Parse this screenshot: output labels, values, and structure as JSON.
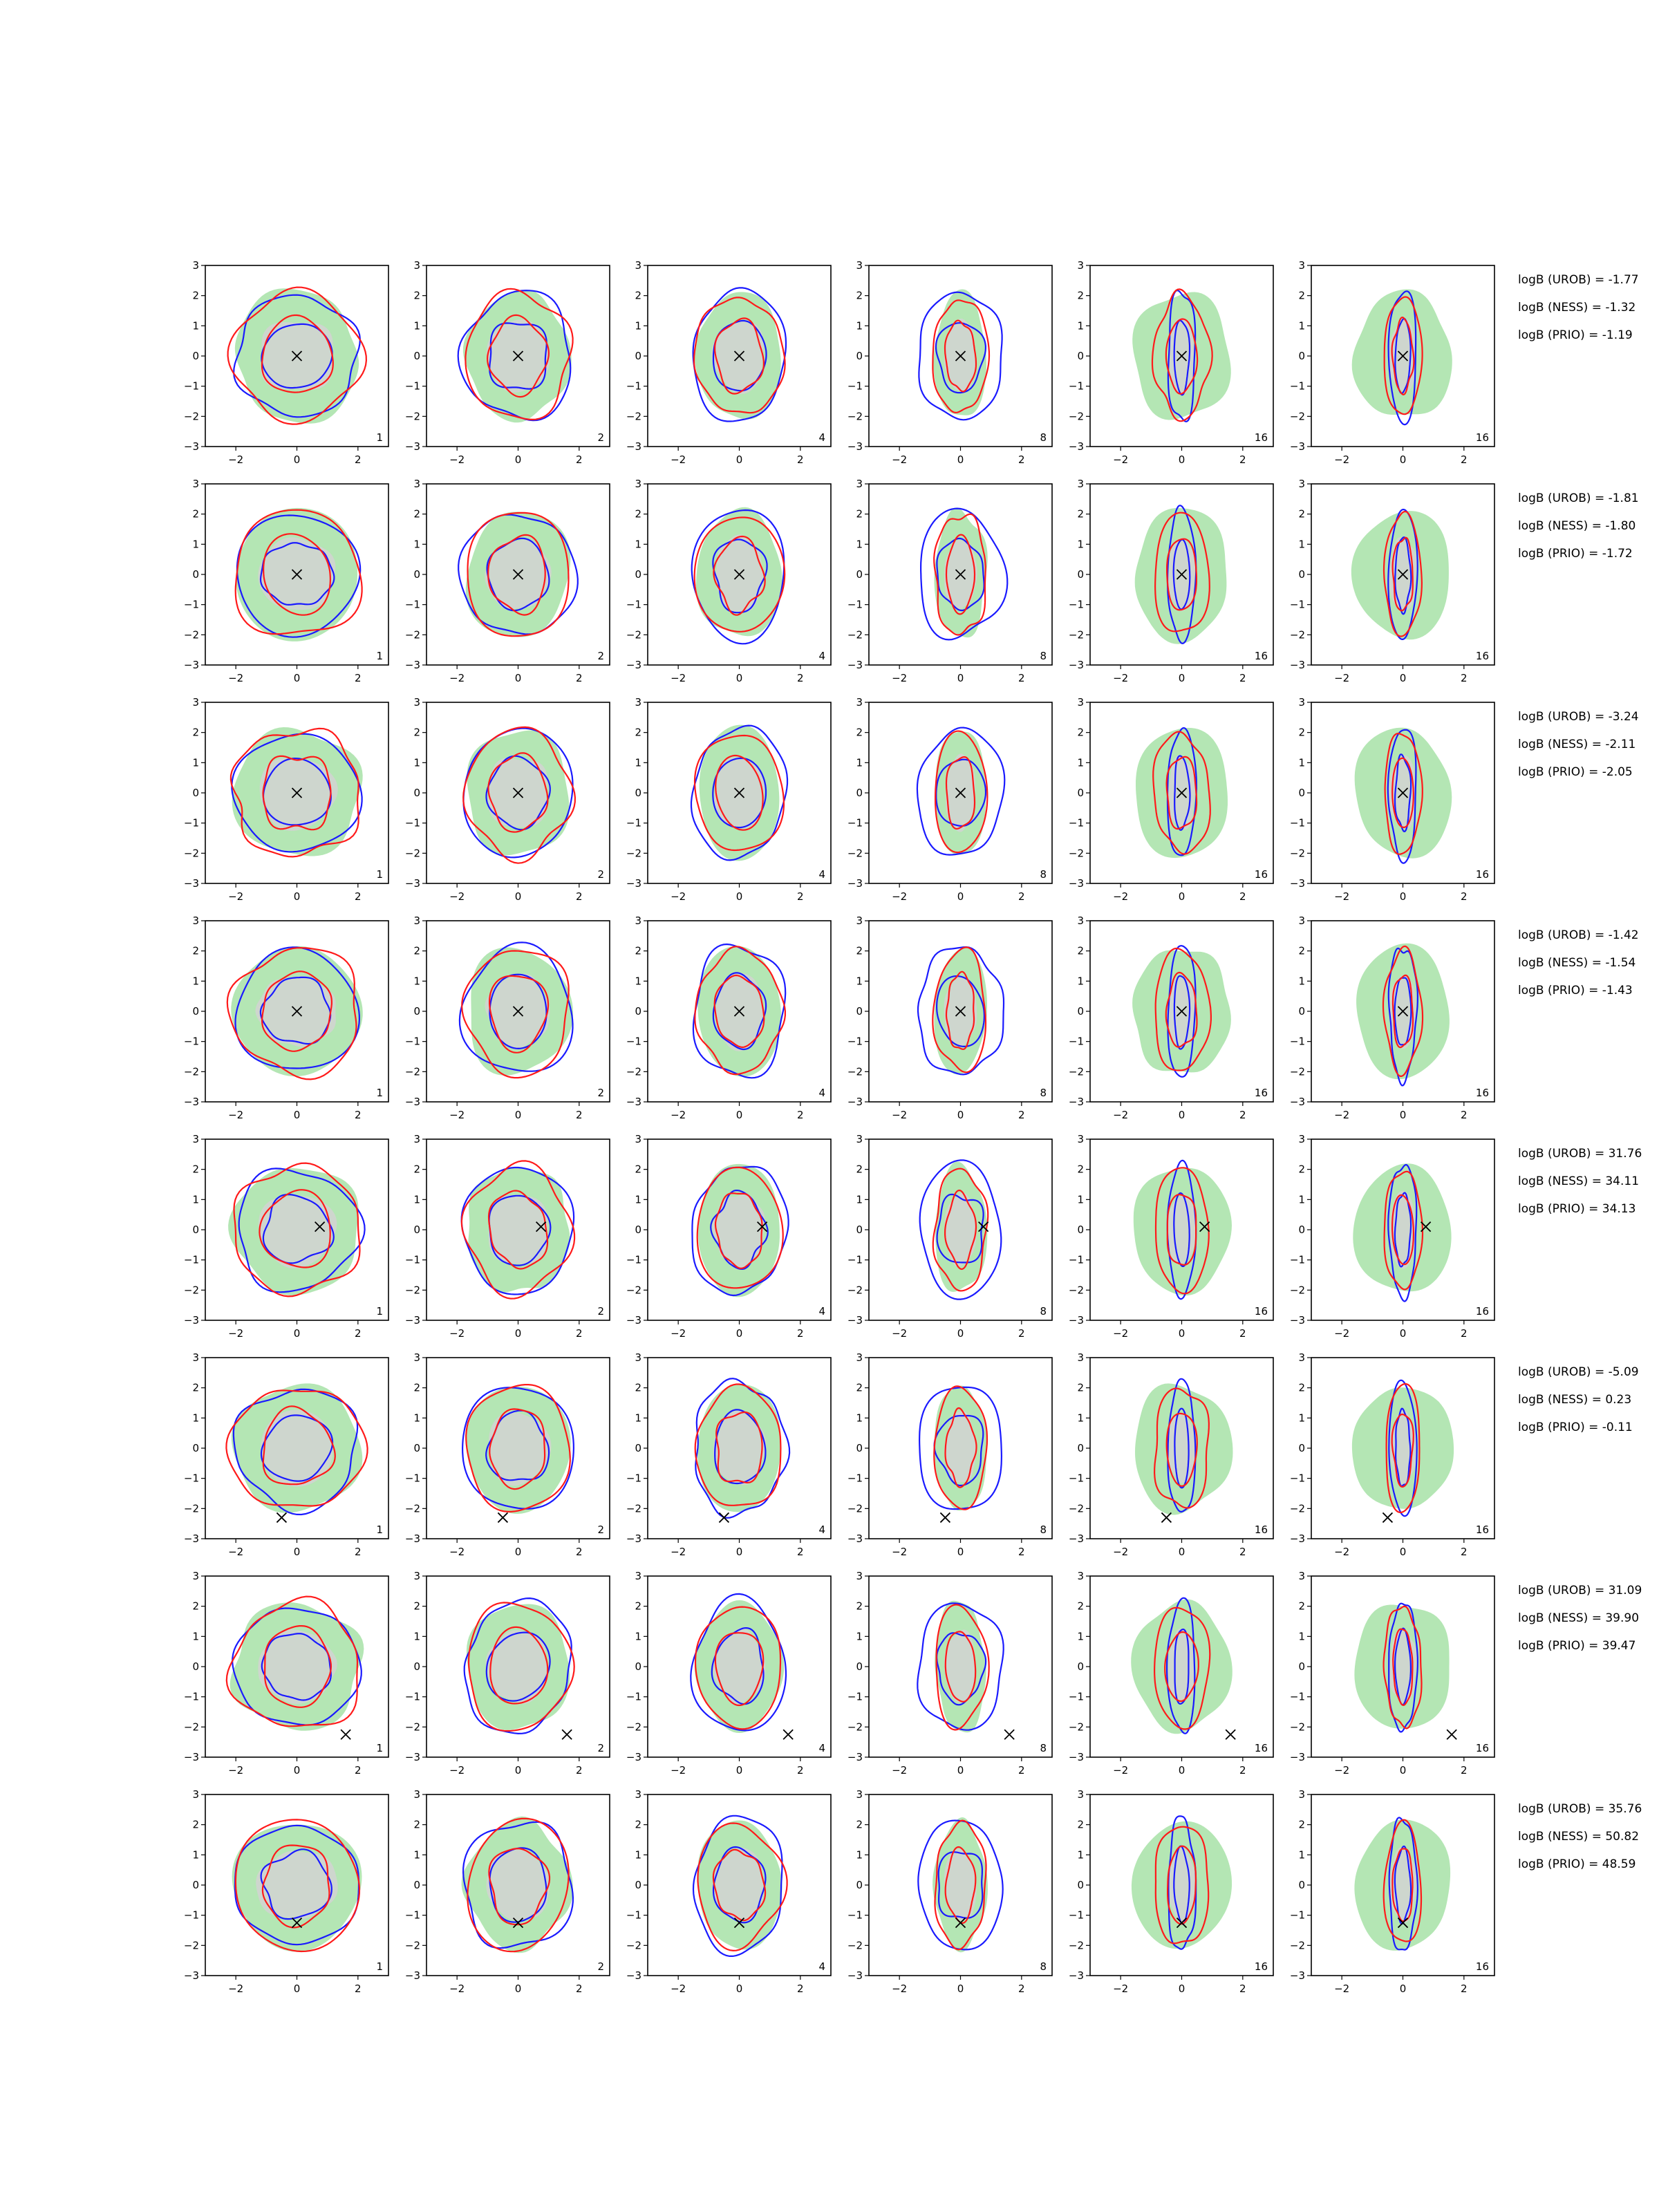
{
  "chart_data": {
    "type": "contour",
    "grid": {
      "rows": 8,
      "cols": 6
    },
    "xlim": [
      -3,
      3
    ],
    "ylim": [
      -3,
      3
    ],
    "xticks": [
      -2,
      0,
      2
    ],
    "yticks": [
      -3,
      -2,
      -1,
      0,
      1,
      2,
      3
    ],
    "column_labels": [
      "1",
      "2",
      "4",
      "8",
      "16",
      "16"
    ],
    "colors": {
      "fill_outer": "#b4e6b4",
      "fill_inner": "#d2d2d2",
      "blue_contour": "#1a1aff",
      "red_contour": "#ff1a1a",
      "marker": "#000000"
    },
    "marker_symbol": "x",
    "rows": [
      {
        "marker": [
          0.0,
          0.0
        ],
        "logB": [
          "logB (UROB) = -1.77",
          "logB (NESS) = -1.32",
          "logB (PRIO) = -1.19"
        ]
      },
      {
        "marker": [
          0.0,
          0.0
        ],
        "logB": [
          "logB (UROB) = -1.81",
          "logB (NESS) = -1.80",
          "logB (PRIO) = -1.72"
        ]
      },
      {
        "marker": [
          0.0,
          0.0
        ],
        "logB": [
          "logB (UROB) = -3.24",
          "logB (NESS) = -2.11",
          "logB (PRIO) = -2.05"
        ]
      },
      {
        "marker": [
          0.0,
          0.0
        ],
        "logB": [
          "logB (UROB) = -1.42",
          "logB (NESS) = -1.54",
          "logB (PRIO) = -1.43"
        ]
      },
      {
        "marker": [
          0.75,
          0.1
        ],
        "logB": [
          "logB (UROB) = 31.76",
          "logB (NESS) = 34.11",
          "logB (PRIO) = 34.13"
        ]
      },
      {
        "marker": [
          -0.5,
          -2.3
        ],
        "logB": [
          "logB (UROB) = -5.09",
          "logB (NESS) = 0.23",
          "logB (PRIO) = -0.11"
        ]
      },
      {
        "marker": [
          1.6,
          -2.25
        ],
        "logB": [
          "logB (UROB) = 31.09",
          "logB (NESS) = 39.90",
          "logB (PRIO) = 39.47"
        ]
      },
      {
        "marker": [
          0.0,
          -1.25
        ],
        "logB": [
          "logB (UROB) = 35.76",
          "logB (NESS) = 50.82",
          "logB (PRIO) = 48.59"
        ]
      }
    ]
  }
}
